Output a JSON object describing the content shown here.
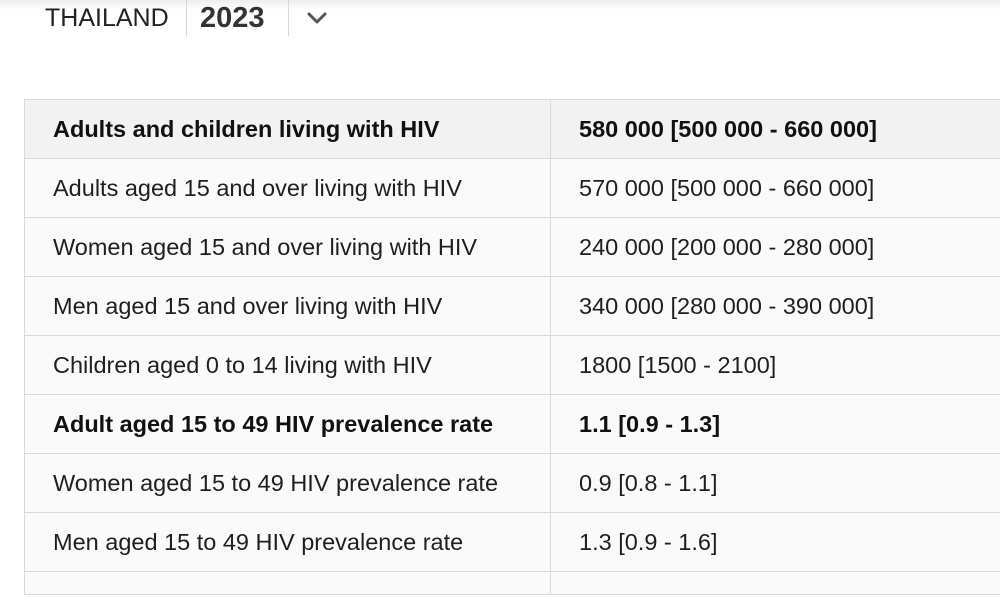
{
  "header": {
    "country": "THAILAND",
    "year": "2023",
    "dropdown_icon": "chevron-down-icon"
  },
  "table": {
    "rows": [
      {
        "label": "Adults and children living with HIV",
        "value": "580 000 [500 000 - 660 000]",
        "bold": true
      },
      {
        "label": "Adults aged 15 and over living with HIV",
        "value": "570 000 [500 000 - 660 000]",
        "bold": false
      },
      {
        "label": "Women aged 15 and over living with HIV",
        "value": "240 000 [200 000 - 280 000]",
        "bold": false
      },
      {
        "label": "Men aged 15 and over living with HIV",
        "value": "340 000 [280 000 - 390 000]",
        "bold": false
      },
      {
        "label": "Children aged 0 to 14 living with HIV",
        "value": "1800 [1500 - 2100]",
        "bold": false
      },
      {
        "label": "Adult aged 15 to 49 HIV prevalence rate",
        "value": "1.1 [0.9 - 1.3]",
        "bold": true
      },
      {
        "label": "Women aged 15 to 49 HIV prevalence rate",
        "value": "0.9 [0.8 - 1.1]",
        "bold": false
      },
      {
        "label": "Men aged 15 to 49 HIV prevalence rate",
        "value": "1.3 [0.9 - 1.6]",
        "bold": false
      },
      {
        "label": "",
        "value": "",
        "bold": false
      }
    ]
  },
  "colors": {
    "border": "#d9d9d9",
    "header_row_bg": "#f2f2f2",
    "row_bg": "#fafafa"
  }
}
